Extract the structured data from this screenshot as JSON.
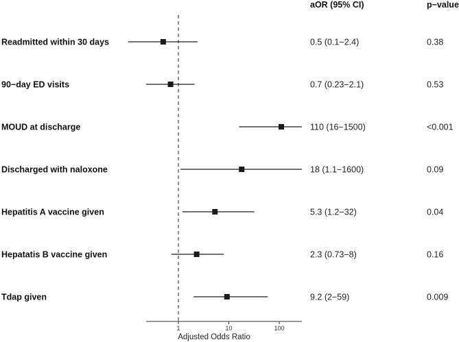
{
  "chart_data": {
    "type": "forest",
    "xlabel": "Adjusted Odds Ratio",
    "xscale": "log10",
    "xlim": [
      0.2,
      250
    ],
    "reference_line": 1,
    "ticks": [
      {
        "value": 1,
        "label": "1"
      },
      {
        "value": 10,
        "label": "10"
      },
      {
        "value": 100,
        "label": "100"
      }
    ],
    "columns": {
      "estimate": "aOR (95% CI)",
      "pvalue": "p−value"
    },
    "rows": [
      {
        "label": "Readmitted within 30 days",
        "or": 0.5,
        "lo": 0.1,
        "hi": 2.4,
        "ci_text": "0.5 (0.1−2.4)",
        "p": "0.38"
      },
      {
        "label": "90−day ED visits",
        "or": 0.7,
        "lo": 0.23,
        "hi": 2.1,
        "ci_text": "0.7 (0.23−2.1)",
        "p": "0.53"
      },
      {
        "label": "MOUD at discharge",
        "or": 110,
        "lo": 16,
        "hi": 1500,
        "ci_text": "110 (16−1500)",
        "p": "<0.001"
      },
      {
        "label": "Discharged with naloxone",
        "or": 18,
        "lo": 1.1,
        "hi": 1600,
        "ci_text": "18 (1.1−1600)",
        "p": "0.09"
      },
      {
        "label": "Hepatitis A vaccine given",
        "or": 5.3,
        "lo": 1.2,
        "hi": 32,
        "ci_text": "5.3 (1.2−32)",
        "p": "0.04"
      },
      {
        "label": "Hepatatis B vaccine given",
        "or": 2.3,
        "lo": 0.73,
        "hi": 8,
        "ci_text": "2.3 (0.73−8)",
        "p": "0.16"
      },
      {
        "label": "Tdap given",
        "or": 9.2,
        "lo": 2,
        "hi": 59,
        "ci_text": "9.2 (2−59)",
        "p": "0.009"
      }
    ]
  }
}
